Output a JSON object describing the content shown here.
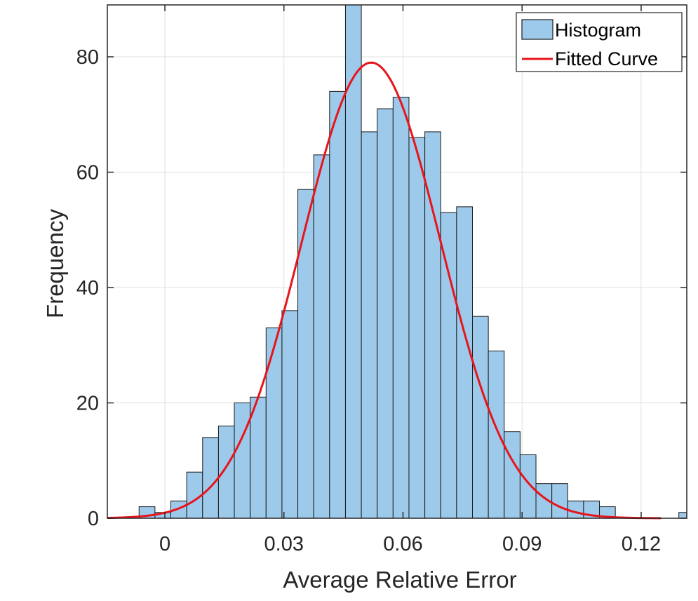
{
  "chart_data": {
    "type": "bar",
    "title": "",
    "xlabel": "Average Relative Error",
    "ylabel": "Frequency",
    "xlim": [
      -0.0145,
      0.1315
    ],
    "ylim": [
      0,
      89
    ],
    "xticks": [
      0,
      0.03,
      0.06,
      0.09,
      0.12
    ],
    "xtick_labels": [
      "0",
      "0.03",
      "0.06",
      "0.09",
      "0.12"
    ],
    "yticks": [
      0,
      20,
      40,
      60,
      80
    ],
    "ytick_labels": [
      "0",
      "20",
      "40",
      "60",
      "80"
    ],
    "grid": true,
    "legend": {
      "position": "top-right",
      "entries": [
        "Histogram",
        "Fitted Curve"
      ]
    },
    "bin_width": 0.004,
    "bin_start": -0.0105,
    "histogram_counts": [
      0,
      2,
      1,
      3,
      8,
      14,
      16,
      20,
      21,
      33,
      36,
      57,
      63,
      74,
      89,
      67,
      71,
      73,
      66,
      67,
      53,
      54,
      35,
      29,
      15,
      11,
      6,
      6,
      3,
      3,
      2,
      0,
      0,
      0,
      0,
      1
    ],
    "fitted_curve": {
      "distribution": "normal",
      "peak": 79,
      "mean": 0.052,
      "sigma": 0.0175,
      "x_range": [
        -0.0145,
        0.125
      ]
    },
    "colors": {
      "bars": "#9dc9ea",
      "bar_edge": "#1a1a1a",
      "curve": "#e8141b",
      "grid": "#e0e0e0",
      "axis": "#262626"
    }
  }
}
